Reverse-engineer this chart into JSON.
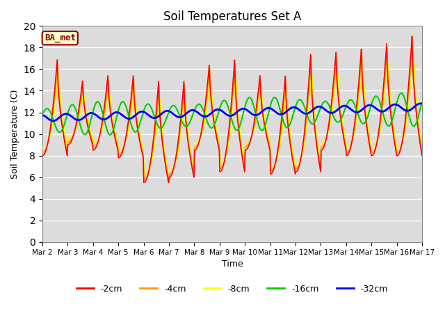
{
  "title": "Soil Temperatures Set A",
  "xlabel": "Time",
  "ylabel": "Soil Temperature (C)",
  "ylim": [
    0,
    20
  ],
  "yticks": [
    0,
    2,
    4,
    6,
    8,
    10,
    12,
    14,
    16,
    18,
    20
  ],
  "annotation": "BA_met",
  "bg_color": "#dcdcdc",
  "legend": [
    "-2cm",
    "-4cm",
    "-8cm",
    "-16cm",
    "-32cm"
  ],
  "line_colors": [
    "#ff0000",
    "#ff9900",
    "#ffff00",
    "#00cc00",
    "#0000ff"
  ],
  "line_widths": [
    1.2,
    1.2,
    1.2,
    1.5,
    2.0
  ],
  "n_days": 15
}
